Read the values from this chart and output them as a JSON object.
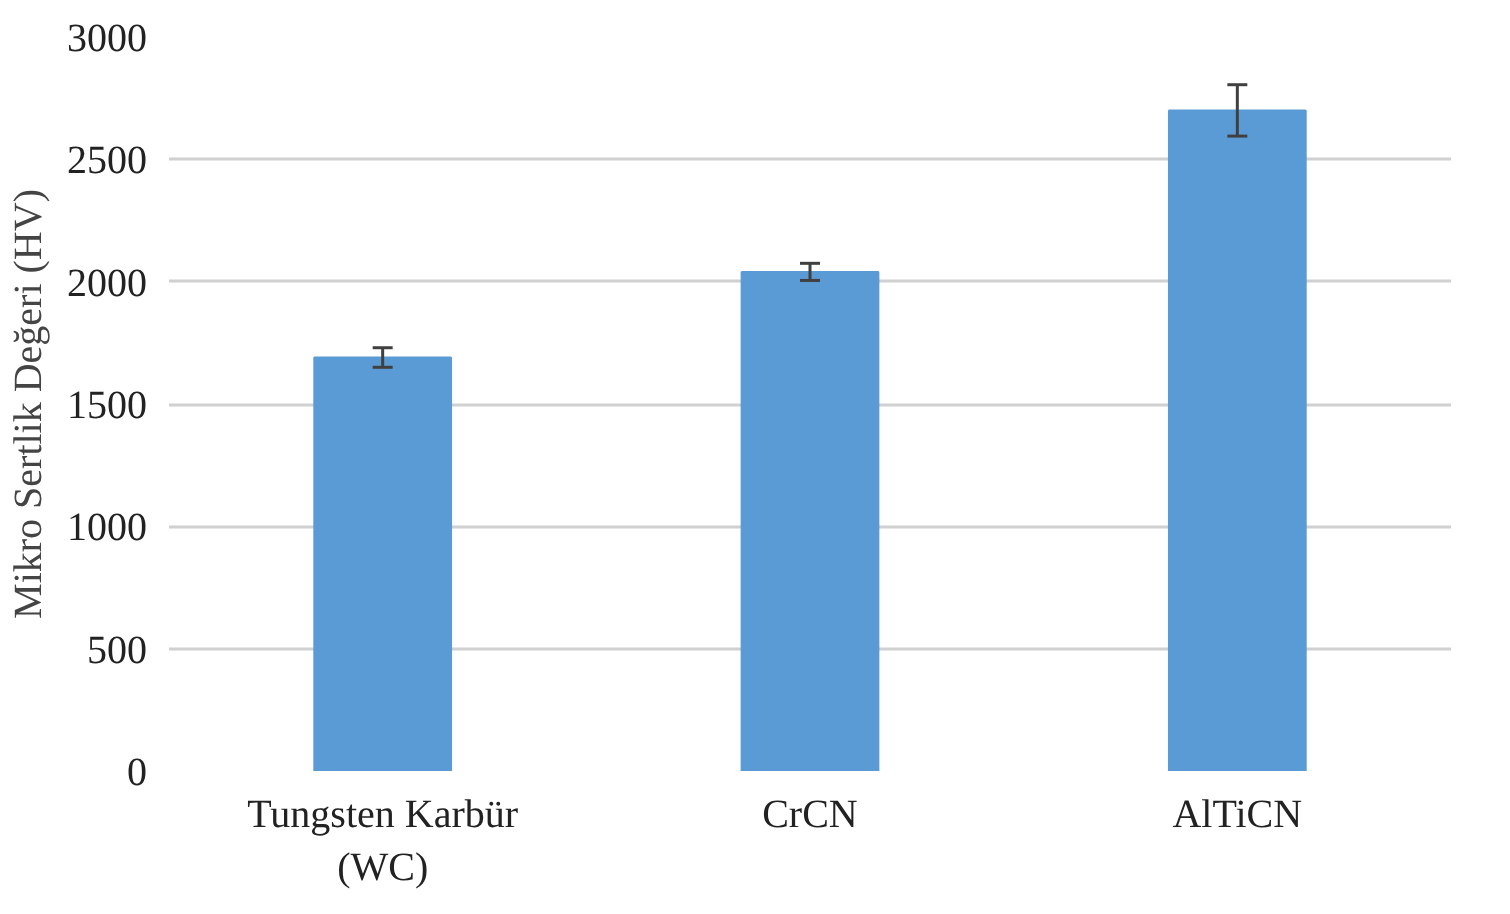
{
  "chart_data": {
    "type": "bar",
    "ylabel": "Mikro Sertlik Değeri (HV)",
    "categories": [
      "Tungsten Karbür (WC)",
      "CrCN",
      "AlTiCN"
    ],
    "values": [
      1690,
      2040,
      2700
    ],
    "errors": [
      40,
      35,
      105
    ],
    "color": "#5b9bd5",
    "ylim": [
      0,
      3000
    ],
    "yticks": [
      0,
      500,
      1000,
      1500,
      2000,
      2500,
      3000
    ],
    "grid": "y"
  }
}
